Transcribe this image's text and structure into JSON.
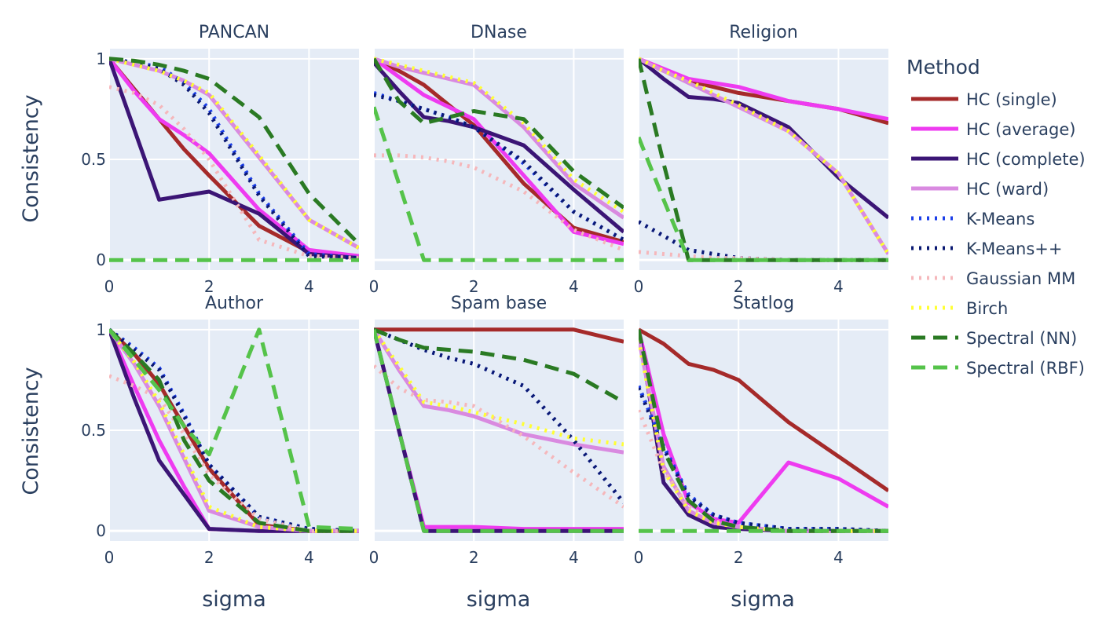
{
  "chart_data": {
    "type": "line",
    "layout": "2x3 small multiples",
    "x": [
      0,
      0.5,
      1,
      1.5,
      2,
      3,
      4,
      5
    ],
    "xlabel": "sigma",
    "ylabel": "Consistency",
    "xlim": [
      0,
      5
    ],
    "ylim": [
      -0.05,
      1.05
    ],
    "xticks": [
      "0",
      "2",
      "4"
    ],
    "yticks": [
      "0",
      "0.5",
      "1"
    ],
    "plot_bgcolor": "#e5ecf6",
    "grid": true,
    "legend": {
      "title": "Method",
      "position": "right"
    },
    "series_styles": [
      {
        "name": "HC (single)",
        "color": "#a52a2a",
        "dash": "solid"
      },
      {
        "name": "HC (average)",
        "color": "#ee3bf0",
        "dash": "solid"
      },
      {
        "name": "HC (complete)",
        "color": "#3b1575",
        "dash": "solid"
      },
      {
        "name": "HC (ward)",
        "color": "#d98ae0",
        "dash": "solid"
      },
      {
        "name": "K-Means",
        "color": "#1b3ee8",
        "dash": "dot"
      },
      {
        "name": "K-Means++",
        "color": "#0a1872",
        "dash": "dot"
      },
      {
        "name": "Gaussian MM",
        "color": "#f5b7bb",
        "dash": "dot"
      },
      {
        "name": "Birch",
        "color": "#ffff33",
        "dash": "dot"
      },
      {
        "name": "Spectral (NN)",
        "color": "#2a7a23",
        "dash": "dash"
      },
      {
        "name": "Spectral (RBF)",
        "color": "#55c34a",
        "dash": "dash"
      }
    ],
    "panels": [
      {
        "title": "PANCAN",
        "series": [
          {
            "name": "HC (single)",
            "values": [
              1,
              0.85,
              0.7,
              0.55,
              0.42,
              0.17,
              0.04,
              0.02
            ]
          },
          {
            "name": "HC (average)",
            "values": [
              1,
              0.84,
              0.7,
              0.62,
              0.53,
              0.25,
              0.05,
              0.02
            ]
          },
          {
            "name": "HC (complete)",
            "values": [
              1,
              0.65,
              0.3,
              0.32,
              0.34,
              0.23,
              0.03,
              0.01
            ]
          },
          {
            "name": "HC (ward)",
            "values": [
              1,
              0.97,
              0.94,
              0.89,
              0.82,
              0.51,
              0.2,
              0.06
            ]
          },
          {
            "name": "K-Means",
            "values": [
              1,
              0.98,
              0.96,
              0.88,
              0.75,
              0.33,
              0.03,
              0.01
            ]
          },
          {
            "name": "K-Means++",
            "values": [
              1,
              0.98,
              0.95,
              0.87,
              0.73,
              0.32,
              0.02,
              0.01
            ]
          },
          {
            "name": "Gaussian MM",
            "values": [
              0.86,
              0.83,
              0.77,
              0.65,
              0.5,
              0.1,
              0.02,
              0.01
            ]
          },
          {
            "name": "Birch",
            "values": [
              1,
              0.97,
              0.94,
              0.89,
              0.83,
              0.52,
              0.2,
              0.06
            ]
          },
          {
            "name": "Spectral (NN)",
            "values": [
              1,
              0.99,
              0.97,
              0.94,
              0.9,
              0.71,
              0.33,
              0.08
            ]
          },
          {
            "name": "Spectral (RBF)",
            "values": [
              0,
              0,
              0,
              0,
              0,
              0,
              0,
              0
            ]
          }
        ]
      },
      {
        "title": "DNase",
        "series": [
          {
            "name": "HC (single)",
            "values": [
              1,
              0.94,
              0.87,
              0.77,
              0.67,
              0.38,
              0.16,
              0.09
            ]
          },
          {
            "name": "HC (average)",
            "values": [
              1,
              0.91,
              0.82,
              0.76,
              0.7,
              0.42,
              0.14,
              0.08
            ]
          },
          {
            "name": "HC (complete)",
            "values": [
              0.98,
              0.84,
              0.71,
              0.69,
              0.66,
              0.57,
              0.35,
              0.14
            ]
          },
          {
            "name": "HC (ward)",
            "values": [
              1,
              0.96,
              0.93,
              0.9,
              0.87,
              0.66,
              0.38,
              0.21
            ]
          },
          {
            "name": "K-Means",
            "values": [
              0.83,
              0.79,
              0.75,
              0.71,
              0.66,
              0.48,
              0.24,
              0.1
            ]
          },
          {
            "name": "K-Means++",
            "values": [
              0.82,
              0.79,
              0.75,
              0.71,
              0.66,
              0.49,
              0.24,
              0.1
            ]
          },
          {
            "name": "Gaussian MM",
            "values": [
              0.52,
              0.52,
              0.51,
              0.49,
              0.46,
              0.34,
              0.15,
              0.05
            ]
          },
          {
            "name": "Birch",
            "values": [
              1,
              0.97,
              0.94,
              0.91,
              0.88,
              0.68,
              0.4,
              0.24
            ]
          },
          {
            "name": "Spectral (NN)",
            "values": [
              1,
              0.79,
              0.68,
              0.71,
              0.74,
              0.7,
              0.44,
              0.26
            ]
          },
          {
            "name": "Spectral (RBF)",
            "values": [
              0.76,
              0.38,
              0,
              0,
              0,
              0,
              0,
              0
            ]
          }
        ]
      },
      {
        "title": "Religion",
        "series": [
          {
            "name": "HC (single)",
            "values": [
              1,
              0.94,
              0.89,
              0.86,
              0.83,
              0.79,
              0.75,
              0.68
            ]
          },
          {
            "name": "HC (average)",
            "values": [
              1,
              0.95,
              0.9,
              0.88,
              0.86,
              0.79,
              0.75,
              0.7
            ]
          },
          {
            "name": "HC (complete)",
            "values": [
              1,
              0.9,
              0.81,
              0.8,
              0.78,
              0.66,
              0.41,
              0.21
            ]
          },
          {
            "name": "HC (ward)",
            "values": [
              1,
              0.94,
              0.88,
              0.82,
              0.76,
              0.64,
              0.43,
              0.03
            ]
          },
          {
            "name": "K-Means",
            "values": [
              0.19,
              0.12,
              0.05,
              0.03,
              0.01,
              0,
              0,
              0
            ]
          },
          {
            "name": "K-Means++",
            "values": [
              0.19,
              0.12,
              0.05,
              0.03,
              0.01,
              0,
              0,
              0
            ]
          },
          {
            "name": "Gaussian MM",
            "values": [
              0.04,
              0.03,
              0.02,
              0.01,
              0.01,
              0,
              0,
              0
            ]
          },
          {
            "name": "Birch",
            "values": [
              1,
              0.94,
              0.89,
              0.83,
              0.77,
              0.64,
              0.43,
              0.03
            ]
          },
          {
            "name": "Spectral (NN)",
            "values": [
              1,
              0.48,
              0,
              0,
              0,
              0,
              0,
              0
            ]
          },
          {
            "name": "Spectral (RBF)",
            "values": [
              0.61,
              0.3,
              0,
              0,
              0,
              0,
              0,
              0
            ]
          }
        ]
      },
      {
        "title": "Author",
        "series": [
          {
            "name": "HC (single)",
            "values": [
              1,
              0.88,
              0.73,
              0.52,
              0.31,
              0.03,
              0,
              0
            ]
          },
          {
            "name": "HC (average)",
            "values": [
              1,
              0.72,
              0.45,
              0.22,
              0.01,
              0,
              0,
              0
            ]
          },
          {
            "name": "HC (complete)",
            "values": [
              1,
              0.66,
              0.35,
              0.18,
              0.01,
              0,
              0,
              0
            ]
          },
          {
            "name": "HC (ward)",
            "values": [
              1,
              0.83,
              0.62,
              0.36,
              0.1,
              0.02,
              0,
              0
            ]
          },
          {
            "name": "K-Means",
            "values": [
              1,
              0.91,
              0.81,
              0.58,
              0.33,
              0.07,
              0.01,
              0
            ]
          },
          {
            "name": "K-Means++",
            "values": [
              1,
              0.9,
              0.8,
              0.57,
              0.33,
              0.07,
              0.01,
              0
            ]
          },
          {
            "name": "Gaussian MM",
            "values": [
              0.77,
              0.72,
              0.66,
              0.48,
              0.28,
              0.06,
              0,
              0
            ]
          },
          {
            "name": "Birch",
            "values": [
              1,
              0.84,
              0.64,
              0.38,
              0.12,
              0.02,
              0,
              0
            ]
          },
          {
            "name": "Spectral (NN)",
            "values": [
              1,
              0.88,
              0.75,
              0.45,
              0.25,
              0.04,
              0,
              0
            ]
          },
          {
            "name": "Spectral (RBF)",
            "values": [
              1,
              0.85,
              0.7,
              0.52,
              0.38,
              1.0,
              0.02,
              0.01
            ]
          }
        ]
      },
      {
        "title": "Spam base",
        "series": [
          {
            "name": "HC (single)",
            "values": [
              1,
              1,
              1,
              1,
              1,
              1,
              1,
              0.94
            ]
          },
          {
            "name": "HC (average)",
            "values": [
              1,
              0.5,
              0.02,
              0.02,
              0.02,
              0.01,
              0.01,
              0.01
            ]
          },
          {
            "name": "HC (complete)",
            "values": [
              1,
              0.5,
              0,
              0,
              0,
              0,
              0,
              0
            ]
          },
          {
            "name": "HC (ward)",
            "values": [
              1,
              0.8,
              0.62,
              0.6,
              0.57,
              0.48,
              0.43,
              0.39
            ]
          },
          {
            "name": "K-Means",
            "values": [
              1,
              0.95,
              0.9,
              0.86,
              0.83,
              0.72,
              0.45,
              0.14
            ]
          },
          {
            "name": "K-Means++",
            "values": [
              1,
              0.95,
              0.9,
              0.86,
              0.83,
              0.72,
              0.45,
              0.14
            ]
          },
          {
            "name": "Gaussian MM",
            "values": [
              0.82,
              0.71,
              0.65,
              0.64,
              0.62,
              0.47,
              0.29,
              0.12
            ]
          },
          {
            "name": "Birch",
            "values": [
              1,
              0.82,
              0.64,
              0.62,
              0.59,
              0.53,
              0.46,
              0.43
            ]
          },
          {
            "name": "Spectral (NN)",
            "values": [
              1,
              0.95,
              0.91,
              0.9,
              0.89,
              0.85,
              0.78,
              0.64
            ]
          },
          {
            "name": "Spectral (RBF)",
            "values": [
              1,
              0.5,
              0,
              0,
              0,
              0,
              0,
              0
            ]
          }
        ]
      },
      {
        "title": "Statlog",
        "series": [
          {
            "name": "HC (single)",
            "values": [
              1,
              0.93,
              0.83,
              0.8,
              0.75,
              0.54,
              0.37,
              0.2
            ]
          },
          {
            "name": "HC (average)",
            "values": [
              1,
              0.48,
              0.14,
              0.06,
              0.04,
              0.34,
              0.26,
              0.12
            ]
          },
          {
            "name": "HC (complete)",
            "values": [
              1,
              0.24,
              0.08,
              0.02,
              0.01,
              0,
              0,
              0
            ]
          },
          {
            "name": "HC (ward)",
            "values": [
              0.96,
              0.32,
              0.1,
              0.04,
              0.02,
              0,
              0,
              0
            ]
          },
          {
            "name": "K-Means",
            "values": [
              0.72,
              0.42,
              0.18,
              0.08,
              0.04,
              0.01,
              0.01,
              0
            ]
          },
          {
            "name": "K-Means++",
            "values": [
              0.71,
              0.41,
              0.17,
              0.08,
              0.04,
              0.01,
              0.01,
              0
            ]
          },
          {
            "name": "Gaussian MM",
            "values": [
              0.6,
              0.3,
              0.12,
              0.05,
              0.02,
              0,
              0,
              0
            ]
          },
          {
            "name": "Birch",
            "values": [
              0.95,
              0.3,
              0.1,
              0.04,
              0.02,
              0,
              0,
              0
            ]
          },
          {
            "name": "Spectral (NN)",
            "values": [
              1,
              0.4,
              0.15,
              0.05,
              0.02,
              0,
              0,
              0
            ]
          },
          {
            "name": "Spectral (RBF)",
            "values": [
              0,
              0,
              0,
              0,
              0,
              0,
              0,
              0
            ]
          }
        ]
      }
    ]
  }
}
